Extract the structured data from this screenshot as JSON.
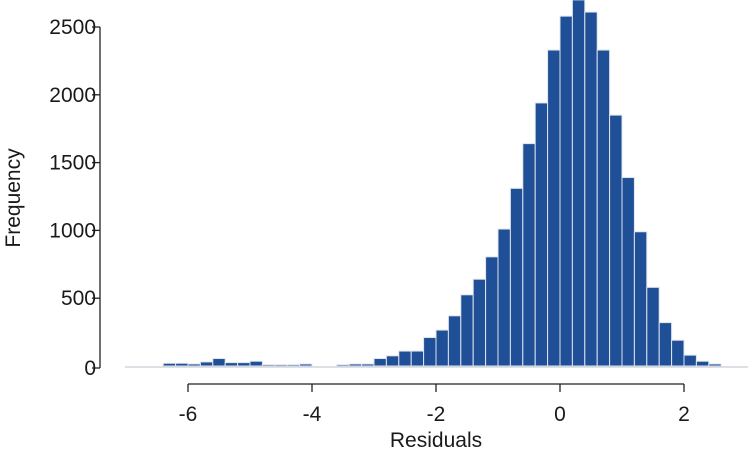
{
  "chart_data": {
    "type": "histogram",
    "title": "",
    "xlabel": "Residuals",
    "ylabel": "Frequency",
    "xlim": [
      -7.0,
      2.8
    ],
    "ylim": [
      0,
      2700
    ],
    "xticks": [
      -6,
      -4,
      -2,
      0,
      2
    ],
    "yticks": [
      0,
      500,
      1000,
      1500,
      2000,
      2500
    ],
    "grid": false,
    "legend": null,
    "bar_color": "#1f4f96",
    "bins": [
      {
        "x0": -6.4,
        "x1": -6.2,
        "count": 20
      },
      {
        "x0": -6.2,
        "x1": -6.0,
        "count": 20
      },
      {
        "x0": -6.0,
        "x1": -5.8,
        "count": 15
      },
      {
        "x0": -5.8,
        "x1": -5.6,
        "count": 30
      },
      {
        "x0": -5.6,
        "x1": -5.4,
        "count": 55
      },
      {
        "x0": -5.4,
        "x1": -5.2,
        "count": 25
      },
      {
        "x0": -5.2,
        "x1": -5.0,
        "count": 25
      },
      {
        "x0": -5.0,
        "x1": -4.8,
        "count": 35
      },
      {
        "x0": -4.8,
        "x1": -4.6,
        "count": 10
      },
      {
        "x0": -4.6,
        "x1": -4.4,
        "count": 10
      },
      {
        "x0": -4.4,
        "x1": -4.2,
        "count": 10
      },
      {
        "x0": -4.2,
        "x1": -4.0,
        "count": 15
      },
      {
        "x0": -3.6,
        "x1": -3.4,
        "count": 10
      },
      {
        "x0": -3.4,
        "x1": -3.2,
        "count": 15
      },
      {
        "x0": -3.2,
        "x1": -3.0,
        "count": 15
      },
      {
        "x0": -3.0,
        "x1": -2.8,
        "count": 55
      },
      {
        "x0": -2.8,
        "x1": -2.6,
        "count": 75
      },
      {
        "x0": -2.6,
        "x1": -2.4,
        "count": 110
      },
      {
        "x0": -2.4,
        "x1": -2.2,
        "count": 110
      },
      {
        "x0": -2.2,
        "x1": -2.0,
        "count": 210
      },
      {
        "x0": -2.0,
        "x1": -1.8,
        "count": 265
      },
      {
        "x0": -1.8,
        "x1": -1.6,
        "count": 370
      },
      {
        "x0": -1.6,
        "x1": -1.4,
        "count": 525
      },
      {
        "x0": -1.4,
        "x1": -1.2,
        "count": 640
      },
      {
        "x0": -1.2,
        "x1": -1.0,
        "count": 805
      },
      {
        "x0": -1.0,
        "x1": -0.8,
        "count": 1010
      },
      {
        "x0": -0.8,
        "x1": -0.6,
        "count": 1310
      },
      {
        "x0": -0.6,
        "x1": -0.4,
        "count": 1640
      },
      {
        "x0": -0.4,
        "x1": -0.2,
        "count": 1940
      },
      {
        "x0": -0.2,
        "x1": 0.0,
        "count": 2330
      },
      {
        "x0": 0.0,
        "x1": 0.2,
        "count": 2580
      },
      {
        "x0": 0.2,
        "x1": 0.4,
        "count": 2700
      },
      {
        "x0": 0.4,
        "x1": 0.6,
        "count": 2610
      },
      {
        "x0": 0.6,
        "x1": 0.8,
        "count": 2330
      },
      {
        "x0": 0.8,
        "x1": 1.0,
        "count": 1850
      },
      {
        "x0": 1.0,
        "x1": 1.2,
        "count": 1390
      },
      {
        "x0": 1.2,
        "x1": 1.4,
        "count": 990
      },
      {
        "x0": 1.4,
        "x1": 1.6,
        "count": 580
      },
      {
        "x0": 1.6,
        "x1": 1.8,
        "count": 320
      },
      {
        "x0": 1.8,
        "x1": 2.0,
        "count": 190
      },
      {
        "x0": 2.0,
        "x1": 2.2,
        "count": 80
      },
      {
        "x0": 2.2,
        "x1": 2.4,
        "count": 35
      },
      {
        "x0": 2.4,
        "x1": 2.6,
        "count": 15
      }
    ]
  }
}
